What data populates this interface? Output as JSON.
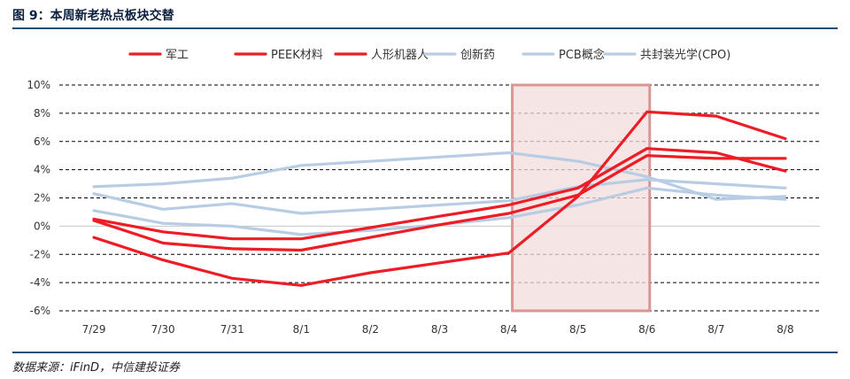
{
  "header": {
    "title": "图 9：本周新老热点板块交替"
  },
  "footer": {
    "source": "数据来源：iFinD，中信建投证券"
  },
  "chart_data": {
    "type": "line",
    "categories": [
      "7/29",
      "7/30",
      "7/31",
      "8/1",
      "8/2",
      "8/3",
      "8/4",
      "8/5",
      "8/6",
      "8/7",
      "8/8"
    ],
    "y_ticks": [
      "10%",
      "8%",
      "6%",
      "4%",
      "2%",
      "0%",
      "-2%",
      "-4%",
      "-6%"
    ],
    "ylim": [
      -6,
      10
    ],
    "grid": "dashed horizontal",
    "legend_position": "top",
    "highlight_range": [
      "8/4",
      "8/6"
    ],
    "colors": {
      "red": "#ee1c25",
      "light_blue": "#b8cce4",
      "highlight_fill": "#f2dcdb",
      "highlight_stroke": "#d99694"
    },
    "series": [
      {
        "name": "军工",
        "color": "#ee1c25",
        "values": [
          -0.8,
          -2.4,
          -3.7,
          -4.2,
          -3.3,
          -2.6,
          -1.9,
          2.1,
          8.1,
          7.8,
          6.2
        ]
      },
      {
        "name": "PEEK材料",
        "color": "#ee1c25",
        "values": [
          0.5,
          -0.4,
          -0.9,
          -0.9,
          -0.1,
          0.7,
          1.5,
          2.7,
          5.5,
          5.2,
          3.9
        ]
      },
      {
        "name": "人形机器人",
        "color": "#ee1c25",
        "values": [
          0.4,
          -1.2,
          -1.6,
          -1.7,
          -0.8,
          0.1,
          0.9,
          2.2,
          5.0,
          4.8,
          4.8
        ]
      },
      {
        "name": "创新药",
        "color": "#b8cce4",
        "values": [
          2.8,
          3.0,
          3.4,
          4.3,
          4.6,
          4.9,
          5.2,
          4.6,
          3.5,
          1.9,
          2.1
        ]
      },
      {
        "name": "PCB概念",
        "color": "#b8cce4",
        "values": [
          2.3,
          1.2,
          1.6,
          0.9,
          1.2,
          1.5,
          1.8,
          2.8,
          3.3,
          3.0,
          2.7
        ]
      },
      {
        "name": "共封装光学(CPO)",
        "color": "#b8cce4",
        "values": [
          1.1,
          0.2,
          0.0,
          -0.6,
          -0.3,
          0.1,
          0.6,
          1.5,
          2.7,
          2.2,
          1.9
        ]
      }
    ]
  }
}
